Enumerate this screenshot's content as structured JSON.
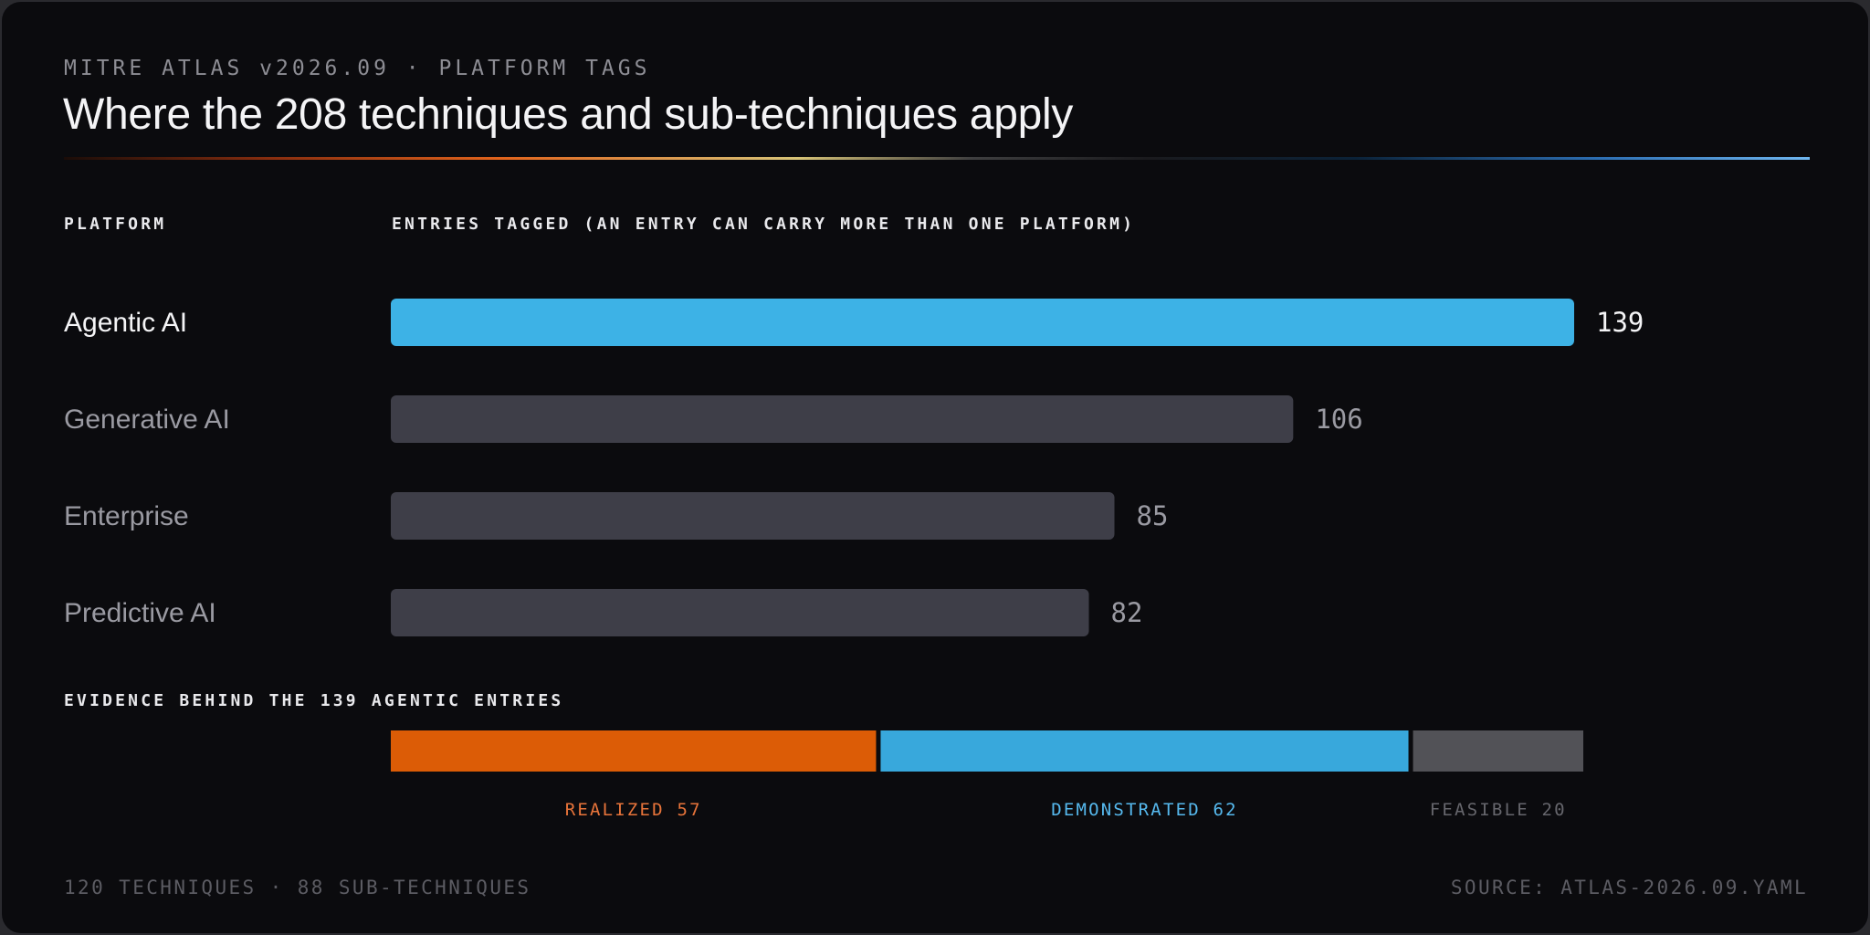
{
  "header": {
    "kicker": "MITRE ATLAS v2026.09 · PLATFORM TAGS",
    "title": "Where the 208 techniques and sub-techniques apply"
  },
  "columns": {
    "platform": "PLATFORM",
    "entries": "ENTRIES TAGGED (AN ENTRY CAN CARRY MORE THAN ONE PLATFORM)"
  },
  "chart_data": [
    {
      "type": "bar",
      "orientation": "horizontal",
      "categories": [
        "Agentic AI",
        "Generative AI",
        "Enterprise",
        "Predictive AI"
      ],
      "values": [
        139,
        106,
        85,
        82
      ],
      "highlight": "Agentic AI",
      "xlim": [
        0,
        139
      ],
      "grid": false,
      "colors": {
        "highlight": "#3db2e6",
        "default": "#3e3e48",
        "highlight_text": "#f4f4f6",
        "default_text": "#9a9aa2"
      }
    },
    {
      "type": "bar",
      "orientation": "stacked-horizontal",
      "title": "EVIDENCE BEHIND THE 139 AGENTIC ENTRIES",
      "segments": [
        {
          "name": "REALIZED",
          "value": 57,
          "color": "#dc5c06",
          "label_color": "#e8743a"
        },
        {
          "name": "DEMONSTRATED",
          "value": 62,
          "color": "#38a8dc",
          "label_color": "#56b9ee"
        },
        {
          "name": "FEASIBLE",
          "value": 20,
          "color": "#525257",
          "label_color": "#66666c"
        }
      ],
      "total": 139
    }
  ],
  "footer": {
    "left": "120 TECHNIQUES · 88 SUB-TECHNIQUES",
    "right": "SOURCE: ATLAS-2026.09.YAML"
  }
}
